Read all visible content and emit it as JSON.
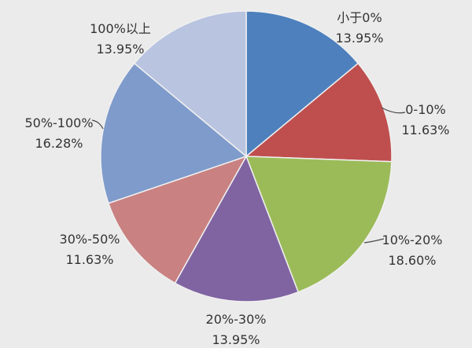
{
  "background_color": "#ebebeb",
  "text_color": "#333333",
  "chart_data": {
    "type": "pie",
    "title": "",
    "legend_position": "none",
    "start_angle_deg": 0,
    "direction": "clockwise",
    "labels_show": "category_and_percent",
    "slices": [
      {
        "label": "小于0%",
        "percent_text": "13.95%",
        "value": 13.95,
        "color": "#4d80bd"
      },
      {
        "label": "0-10%",
        "percent_text": "11.63%",
        "value": 11.63,
        "color": "#bf4f4e"
      },
      {
        "label": "10%-20%",
        "percent_text": "18.60%",
        "value": 18.6,
        "color": "#9bbb59"
      },
      {
        "label": "20%-30%",
        "percent_text": "13.95%",
        "value": 13.95,
        "color": "#8064a2"
      },
      {
        "label": "30%-50%",
        "percent_text": "11.63%",
        "value": 11.63,
        "color": "#c98181"
      },
      {
        "label": "50%-100%",
        "percent_text": "16.28%",
        "value": 16.28,
        "color": "#7f9bcb"
      },
      {
        "label": "100%以上",
        "percent_text": "13.95%",
        "value": 13.95,
        "color": "#b9c4e0"
      }
    ]
  }
}
